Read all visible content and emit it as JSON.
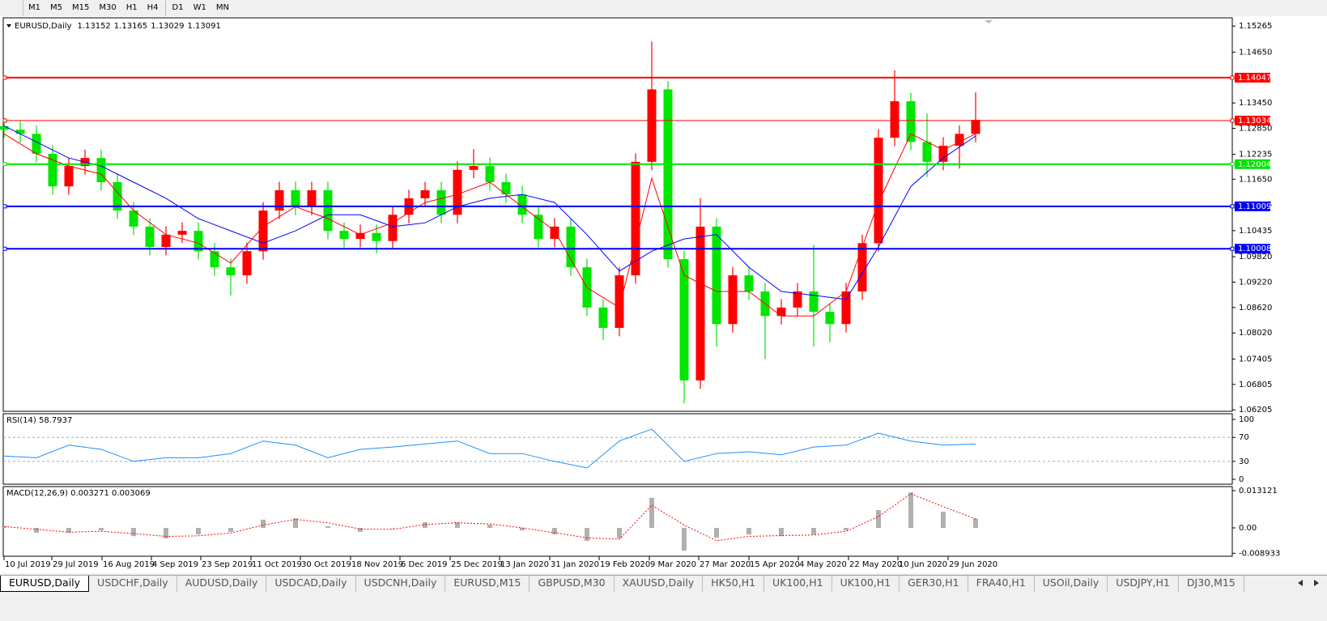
{
  "toolbar": {
    "timeframes": [
      "M1",
      "M5",
      "M15",
      "M30",
      "H1",
      "H4",
      "D1",
      "W1",
      "MN"
    ]
  },
  "chart_data": [
    {
      "type": "candlestick",
      "title": "EURUSD,Daily",
      "last_bar": [
        1.13152,
        1.13165,
        1.13029,
        1.13091
      ],
      "xlim": [
        -0.05,
        75.85
      ],
      "ylim": [
        1.0617,
        1.1546
      ],
      "yticks": [
        1.15265,
        {
          "value": 1.1465,
          "label": "1.14650"
        },
        {
          "value": 1.1345,
          "label": "1.13450"
        },
        {
          "value": 1.1285,
          "label": "1.12850"
        },
        1.12235,
        {
          "value": 1.1165,
          "label": "1.11650"
        },
        1.11045,
        1.10435,
        {
          "value": 1.0982,
          "label": "1.09820"
        },
        {
          "value": 1.0922,
          "label": "1.09220"
        },
        {
          "value": 1.0862,
          "label": "1.08620"
        },
        {
          "value": 1.0802,
          "label": "1.08020"
        },
        1.07405,
        1.06805,
        1.06205
      ],
      "xticks": [
        {
          "value": 0,
          "label": "10 Jul 2019"
        },
        {
          "value": 2.95,
          "label": "29 Jul 2019"
        },
        {
          "value": 6.05,
          "label": "16 Aug 2019"
        },
        {
          "value": 9.1,
          "label": "4 Sep 2019"
        },
        {
          "value": 12.15,
          "label": "23 Sep 2019"
        },
        {
          "value": 15.25,
          "label": "11 Oct 2019"
        },
        {
          "value": 18.3,
          "label": "30 Oct 2019"
        },
        {
          "value": 21.4,
          "label": "18 Nov 2019"
        },
        {
          "value": 24.45,
          "label": "6 Dec 2019"
        },
        {
          "value": 27.55,
          "label": "25 Dec 2019"
        },
        {
          "value": 30.6,
          "label": "13 Jan 2020"
        },
        {
          "value": 33.7,
          "label": "31 Jan 2020"
        },
        {
          "value": 36.75,
          "label": "19 Feb 2020"
        },
        {
          "value": 39.85,
          "label": "9 Mar 2020"
        },
        {
          "value": 42.9,
          "label": "27 Mar 2020"
        },
        {
          "value": 46,
          "label": "15 Apr 2020"
        },
        {
          "value": 49.05,
          "label": "4 May 2020"
        },
        {
          "value": 52.15,
          "label": "22 May 2020"
        },
        {
          "value": 55.2,
          "label": "10 Jun 2020"
        },
        {
          "value": 58.3,
          "label": "29 Jun 2020"
        }
      ],
      "up_color": "#ff0000",
      "down_color": "#00e600",
      "candles": {
        "open": [
          1.129,
          1.1282,
          1.1272,
          1.1225,
          1.1148,
          1.1196,
          1.1215,
          1.1158,
          1.1091,
          1.1053,
          1.1005,
          1.1034,
          1.1043,
          1.0995,
          1.0957,
          1.0938,
          1.0995,
          1.1091,
          1.1139,
          1.11,
          1.1139,
          1.1043,
          1.1024,
          1.1038,
          1.1019,
          1.1081,
          1.112,
          1.1139,
          1.1081,
          1.1187,
          1.1196,
          1.1158,
          1.1129,
          1.1081,
          1.1024,
          1.1053,
          1.0957,
          1.0862,
          1.0814,
          1.0938,
          1.1206,
          1.1377,
          1.0976,
          1.069,
          1.1053,
          1.0823,
          1.0938,
          1.09,
          1.0842,
          1.0862,
          1.09,
          1.0852,
          1.0823,
          1.09,
          1.1014,
          1.1263,
          1.1349,
          1.1253,
          1.1206,
          1.1244,
          1.1272
        ],
        "high": [
          1.131,
          1.1302,
          1.1292,
          1.1245,
          1.1216,
          1.1235,
          1.1235,
          1.1178,
          1.1111,
          1.1073,
          1.1054,
          1.1063,
          1.1063,
          1.1015,
          1.0977,
          1.1015,
          1.1111,
          1.1159,
          1.1159,
          1.1159,
          1.1159,
          1.1063,
          1.1058,
          1.1058,
          1.1101,
          1.114,
          1.1159,
          1.1159,
          1.1207,
          1.1236,
          1.1216,
          1.1178,
          1.1149,
          1.1101,
          1.1073,
          1.1073,
          1.0977,
          1.0882,
          1.0958,
          1.1226,
          1.149,
          1.1397,
          1.0996,
          1.112,
          1.1073,
          1.0958,
          1.0958,
          1.092,
          1.0882,
          1.092,
          1.101,
          1.0872,
          1.092,
          1.1034,
          1.1283,
          1.1422,
          1.1369,
          1.132,
          1.1264,
          1.1292,
          1.137
        ],
        "low": [
          1.1262,
          1.1252,
          1.1205,
          1.1128,
          1.1128,
          1.1176,
          1.1138,
          1.1071,
          1.1033,
          1.0985,
          1.0985,
          1.1014,
          1.0975,
          1.0937,
          1.089,
          1.0918,
          1.0975,
          1.1071,
          1.108,
          1.108,
          1.1023,
          1.1004,
          1.1004,
          1.099,
          1.0999,
          1.1061,
          1.11,
          1.1061,
          1.1061,
          1.1167,
          1.1138,
          1.1109,
          1.1061,
          1.1004,
          1.1004,
          1.0937,
          1.0842,
          1.0785,
          1.0794,
          1.0918,
          1.1186,
          1.0956,
          1.0636,
          1.067,
          1.077,
          1.0803,
          1.088,
          1.074,
          1.0822,
          1.0842,
          1.077,
          1.078,
          1.0803,
          1.088,
          1.0994,
          1.1243,
          1.1233,
          1.117,
          1.1186,
          1.119,
          1.1252
        ],
        "close": [
          1.1282,
          1.1272,
          1.1225,
          1.1148,
          1.1196,
          1.1215,
          1.1158,
          1.1091,
          1.1053,
          1.1005,
          1.1034,
          1.1043,
          1.0995,
          1.0957,
          1.0938,
          1.0995,
          1.1091,
          1.1139,
          1.11,
          1.1139,
          1.1043,
          1.1024,
          1.1038,
          1.1019,
          1.1081,
          1.112,
          1.1139,
          1.1081,
          1.1187,
          1.1196,
          1.1158,
          1.1129,
          1.1081,
          1.1024,
          1.1053,
          1.0957,
          1.0862,
          1.0814,
          1.0938,
          1.1206,
          1.1377,
          1.0976,
          1.069,
          1.1053,
          1.0823,
          1.0938,
          1.09,
          1.0842,
          1.0862,
          1.09,
          1.0852,
          1.0823,
          1.09,
          1.1014,
          1.1263,
          1.1349,
          1.1253,
          1.1206,
          1.1244,
          1.1272,
          1.1305
        ]
      },
      "lines": [
        {
          "color": "#0000ff",
          "x": [
            0,
            2,
            4,
            6,
            8,
            10,
            12,
            14,
            16,
            18,
            20,
            22,
            24,
            26,
            28,
            30,
            32,
            34,
            36,
            38,
            40,
            42,
            44,
            46,
            48,
            50,
            52,
            54,
            56,
            58,
            60
          ],
          "values": [
            1.1291,
            1.1253,
            1.1215,
            1.1196,
            1.1158,
            1.112,
            1.1072,
            1.1043,
            1.1014,
            1.1043,
            1.1081,
            1.1081,
            1.1053,
            1.1062,
            1.11,
            1.112,
            1.1129,
            1.111,
            1.1034,
            1.0948,
            1.0995,
            1.1024,
            1.1034,
            1.0957,
            1.09,
            1.0891,
            1.0881,
            1.1005,
            1.1148,
            1.1215,
            1.1267
          ]
        },
        {
          "color": "#ff0000",
          "x": [
            0,
            2,
            4,
            6,
            8,
            10,
            12,
            14,
            16,
            18,
            20,
            22,
            24,
            26,
            28,
            30,
            32,
            34,
            36,
            38,
            40,
            42,
            44,
            46,
            48,
            50,
            52,
            54,
            56,
            58,
            60
          ],
          "values": [
            1.1272,
            1.1225,
            1.1196,
            1.1177,
            1.1091,
            1.1034,
            1.1014,
            1.0967,
            1.1053,
            1.11,
            1.1072,
            1.1034,
            1.1062,
            1.111,
            1.1129,
            1.1158,
            1.11,
            1.1043,
            1.0909,
            1.0862,
            1.1167,
            1.0938,
            1.09,
            1.09,
            1.0842,
            1.0842,
            1.09,
            1.111,
            1.1272,
            1.1234,
            1.1272
          ]
        }
      ],
      "hlines": [
        {
          "value": 1.14047,
          "color": "#ff0000"
        },
        {
          "value": 1.13034,
          "color": "#ff0000"
        },
        {
          "value": 1.12004,
          "color": "#00e600"
        },
        {
          "value": 1.11009,
          "color": "#0000ff"
        },
        {
          "value": 1.10008,
          "color": "#0000ff"
        }
      ]
    },
    {
      "type": "line",
      "title": "RSI(14) 58.7937",
      "xlim": [
        -0.05,
        75.85
      ],
      "ylim": [
        -8.1,
        109.5
      ],
      "yticks": [
        100,
        70,
        30,
        0
      ],
      "levels": [
        70,
        30
      ],
      "color": "#1e90ff",
      "x": [
        0,
        2,
        4,
        6,
        8,
        10,
        12,
        14,
        16,
        18,
        20,
        22,
        24,
        26,
        28,
        30,
        32,
        34,
        36,
        38,
        40,
        42,
        44,
        46,
        48,
        50,
        52,
        54,
        56,
        58,
        60
      ],
      "values": [
        39,
        36,
        57,
        50,
        30,
        36,
        36,
        43,
        64,
        57,
        36,
        50,
        54,
        59,
        64,
        43,
        43,
        30,
        19,
        64,
        84,
        30,
        43,
        46,
        41,
        54,
        57,
        77,
        64,
        57,
        59
      ]
    },
    {
      "type": "macd",
      "title": "MACD(12,26,9) 0.003271 0.003069",
      "xlim": [
        -0.05,
        75.85
      ],
      "ylim": [
        -0.00998,
        0.01455
      ],
      "yticks": [
        0.013121,
        {
          "value": 0,
          "label": "0.00"
        },
        -0.008933
      ],
      "color": "#b0b0b0",
      "signal_color": "#ff0000",
      "x": [
        0,
        2,
        4,
        6,
        8,
        10,
        12,
        14,
        16,
        18,
        20,
        22,
        24,
        26,
        28,
        30,
        32,
        34,
        36,
        38,
        40,
        42,
        44,
        46,
        48,
        50,
        52,
        54,
        56,
        58,
        60
      ],
      "values": [
        0.0006,
        -0.0017,
        -0.0017,
        -0.0009,
        -0.0029,
        -0.0037,
        -0.0023,
        -0.0014,
        0.0029,
        0.0034,
        0.0006,
        -0.0014,
        0,
        0.002,
        0.002,
        0.0011,
        -0.0009,
        -0.0023,
        -0.0046,
        -0.0037,
        0.0106,
        -0.008,
        -0.0034,
        -0.0023,
        -0.0029,
        -0.0023,
        -0.0009,
        0.0063,
        0.0125,
        0.0057,
        0.0033
      ],
      "signal": [
        0.0005,
        -0.0005,
        -0.0015,
        -0.0012,
        -0.002,
        -0.003,
        -0.0028,
        -0.0018,
        0.001,
        0.003,
        0.0018,
        -0.0004,
        -0.0005,
        0.0012,
        0.0018,
        0.0014,
        0,
        -0.0017,
        -0.0035,
        -0.004,
        0.008,
        0.001,
        -0.0045,
        -0.003,
        -0.0027,
        -0.0025,
        -0.0012,
        0.004,
        0.012,
        0.0075,
        0.0031
      ]
    }
  ],
  "tabs": [
    "EURUSD,Daily",
    "USDCHF,Daily",
    "AUDUSD,Daily",
    "USDCAD,Daily",
    "USDCNH,Daily",
    "EURUSD,M15",
    "GBPUSD,M30",
    "XAUUSD,Daily",
    "HK50,H1",
    "UK100,H1",
    "UK100,H1",
    "GER30,H1",
    "FRA40,H1",
    "USOil,Daily",
    "USDJPY,H1",
    "DJ30,M15"
  ]
}
